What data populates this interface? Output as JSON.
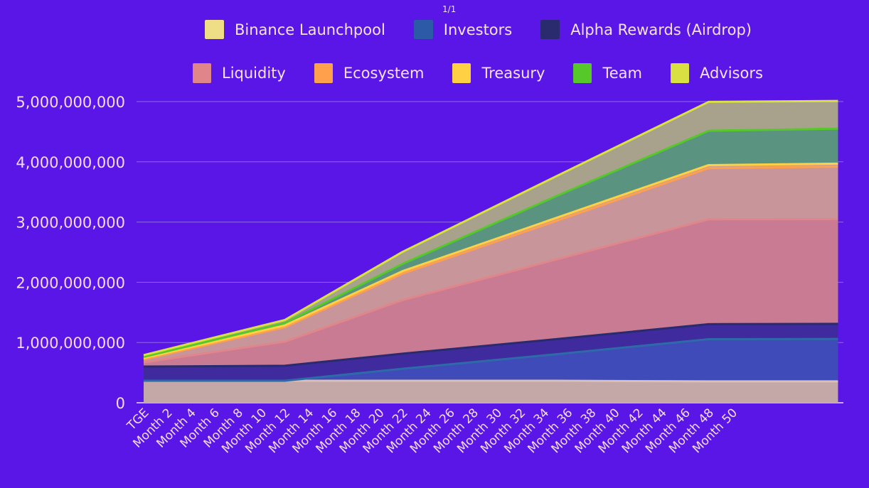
{
  "page_indicator": "1/1",
  "legend": {
    "row1": [
      {
        "label": "Binance Launchpool",
        "color": "#f0de86"
      },
      {
        "label": "Investors",
        "color": "#2c5aa6"
      },
      {
        "label": "Alpha Rewards (Airdrop)",
        "color": "#2a2a6e"
      }
    ],
    "row2": [
      {
        "label": "Liquidity",
        "color": "#e0868a"
      },
      {
        "label": "Ecosystem",
        "color": "#ffa04c"
      },
      {
        "label": "Treasury",
        "color": "#ffd044"
      },
      {
        "label": "Team",
        "color": "#56c82a"
      },
      {
        "label": "Advisors",
        "color": "#d8e042"
      }
    ]
  },
  "chart_data": {
    "type": "area",
    "stacked": true,
    "title": "",
    "xlabel": "",
    "ylabel": "",
    "ylim": [
      0,
      5000000000
    ],
    "y_ticks": [
      "0",
      "1,000,000,000",
      "2,000,000,000",
      "3,000,000,000",
      "4,000,000,000",
      "5,000,000,000"
    ],
    "x_tick_labels": [
      "TGE",
      "Month 2",
      "Month 4",
      "Month 6",
      "Month 8",
      "Month 10",
      "Month 12",
      "Month 14",
      "Month 16",
      "Month 18",
      "Month 20",
      "Month 22",
      "Month 24",
      "Month 26",
      "Month 28",
      "Month 30",
      "Month 32",
      "Month 34",
      "Month 36",
      "Month 38",
      "Month 40",
      "Month 42",
      "Month 44",
      "Month 46",
      "Month 48",
      "Month 50"
    ],
    "x_months": [
      0,
      12,
      22,
      35,
      48,
      59
    ],
    "grid": "horizontal",
    "legend_position": "top",
    "series": [
      {
        "name": "Binance Launchpool",
        "fill": "#c4a8a8",
        "line": "#d8c0b8",
        "values": [
          365000000,
          365000000,
          365000000,
          365000000,
          355000000,
          355000000
        ]
      },
      {
        "name": "Investors",
        "fill": "#3f4bb8",
        "line": "#2f6aa8",
        "values": [
          0,
          0,
          200000000,
          440000000,
          700000000,
          705000000
        ]
      },
      {
        "name": "Alpha Rewards (Airdrop)",
        "fill": "#3f2a9e",
        "line": "#2a2a6e",
        "values": [
          236000000,
          250000000,
          250000000,
          250000000,
          250000000,
          250000000
        ]
      },
      {
        "name": "Liquidity",
        "fill": "#c87b93",
        "line": "#e0868a",
        "values": [
          70000000,
          400000000,
          890000000,
          1320000000,
          1740000000,
          1740000000
        ]
      },
      {
        "name": "Ecosystem",
        "fill": "#c8959a",
        "line": "#ffa04c",
        "values": [
          50000000,
          240000000,
          440000000,
          640000000,
          850000000,
          870000000
        ]
      },
      {
        "name": "Treasury",
        "fill": "#c8a098",
        "line": "#ffd044",
        "values": [
          20000000,
          30000000,
          40000000,
          50000000,
          50000000,
          50000000
        ]
      },
      {
        "name": "Team",
        "fill": "#5a9480",
        "line": "#56c82a",
        "values": [
          20000000,
          40000000,
          120000000,
          360000000,
          570000000,
          580000000
        ]
      },
      {
        "name": "Advisors",
        "fill": "#a8a28c",
        "line": "#d8e042",
        "values": [
          30000000,
          50000000,
          200000000,
          330000000,
          480000000,
          460000000
        ]
      }
    ]
  }
}
